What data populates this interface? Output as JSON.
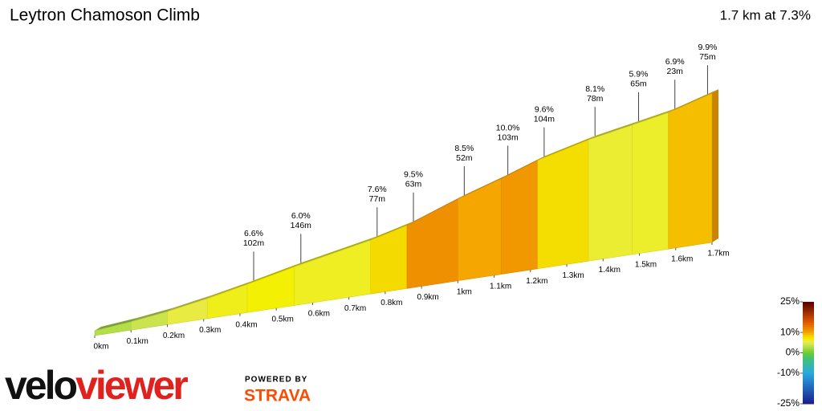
{
  "chart_data": {
    "type": "profile",
    "title": "Leytron Chamoson Climb",
    "subtitle": "1.7 km at 7.3%",
    "x": [
      0,
      0.1,
      0.2,
      0.31,
      0.42,
      0.55,
      0.76,
      0.86,
      1.0,
      1.12,
      1.22,
      1.36,
      1.48,
      1.58,
      1.7
    ],
    "elevation": [
      0,
      3,
      7,
      13,
      20,
      29,
      42,
      50,
      66,
      78,
      89,
      100,
      107,
      113,
      124
    ],
    "xlim": [
      0,
      1.7
    ],
    "xticks": [
      {
        "value": 0,
        "label": "0km"
      },
      {
        "value": 0.1,
        "label": "0.1km"
      },
      {
        "value": 0.2,
        "label": "0.2km"
      },
      {
        "value": 0.3,
        "label": "0.3km"
      },
      {
        "value": 0.4,
        "label": "0.4km"
      },
      {
        "value": 0.5,
        "label": "0.5km"
      },
      {
        "value": 0.6,
        "label": "0.6km"
      },
      {
        "value": 0.7,
        "label": "0.7km"
      },
      {
        "value": 0.8,
        "label": "0.8km"
      },
      {
        "value": 0.9,
        "label": "0.9km"
      },
      {
        "value": 1,
        "label": "1km"
      },
      {
        "value": 1.1,
        "label": "1.1km"
      },
      {
        "value": 1.2,
        "label": "1.2km"
      },
      {
        "value": 1.3,
        "label": "1.3km"
      },
      {
        "value": 1.4,
        "label": "1.4km"
      },
      {
        "value": 1.5,
        "label": "1.5km"
      },
      {
        "value": 1.6,
        "label": "1.6km"
      },
      {
        "value": 1.7,
        "label": "1.7km"
      }
    ],
    "annotations": [
      {
        "distance": 0.42,
        "gradient": "6.6%",
        "length": "102m"
      },
      {
        "distance": 0.55,
        "gradient": "6.0%",
        "length": "146m"
      },
      {
        "distance": 0.76,
        "gradient": "7.6%",
        "length": "77m"
      },
      {
        "distance": 0.86,
        "gradient": "9.5%",
        "length": "63m"
      },
      {
        "distance": 1.0,
        "gradient": "8.5%",
        "length": "52m"
      },
      {
        "distance": 1.12,
        "gradient": "10.0%",
        "length": "103m"
      },
      {
        "distance": 1.22,
        "gradient": "9.6%",
        "length": "104m"
      },
      {
        "distance": 1.36,
        "gradient": "8.1%",
        "length": "78m"
      },
      {
        "distance": 1.48,
        "gradient": "5.9%",
        "length": "65m"
      },
      {
        "distance": 1.58,
        "gradient": "6.9%",
        "length": "23m"
      },
      {
        "distance": 1.67,
        "gradient": "9.9%",
        "length": "75m"
      }
    ],
    "colorbar": {
      "ylim": [
        -25,
        25
      ],
      "yticks": [
        {
          "value": 25,
          "label": "25%"
        },
        {
          "value": 10,
          "label": "10%"
        },
        {
          "value": 0,
          "label": "0%"
        },
        {
          "value": -10,
          "label": "-10%"
        },
        {
          "value": -25,
          "label": "-25%"
        }
      ]
    }
  },
  "branding": {
    "velo": "velo",
    "viewer": "viewer",
    "powered_by": "POWERED BY",
    "strava": "STRAVA"
  }
}
